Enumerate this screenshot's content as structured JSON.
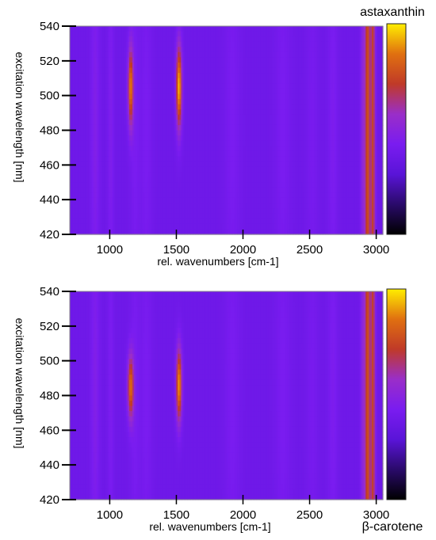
{
  "chart_data": [
    {
      "type": "heatmap",
      "colorbar_label": "astaxanthin",
      "colorbar_label_position": "top-right",
      "xlabel": "rel. wavenumbers [cm-1]",
      "ylabel": "excitation wavelength [nm]",
      "xlim": [
        700,
        3050
      ],
      "ylim": [
        420,
        540
      ],
      "xticks": [
        1000,
        1500,
        2000,
        2500,
        3000
      ],
      "yticks": [
        420,
        440,
        460,
        480,
        500,
        520,
        540
      ],
      "colormap": [
        "#000000",
        "#2a0a6a",
        "#5a14d8",
        "#7a1cf0",
        "#9a2ec8",
        "#c03a28",
        "#e07010",
        "#ffee00"
      ],
      "background_level": 0.38,
      "bands": [
        {
          "center": 890,
          "width": 22,
          "peak_wl": 480,
          "wl_width": 80,
          "amp": 0.08
        },
        {
          "center": 1008,
          "width": 15,
          "peak_wl": 480,
          "wl_width": 80,
          "amp": 0.07
        },
        {
          "center": 1157,
          "width": 14,
          "peak_wl": 505,
          "wl_width": 16,
          "amp": 0.48
        },
        {
          "center": 1190,
          "width": 25,
          "peak_wl": 480,
          "wl_width": 80,
          "amp": 0.05
        },
        {
          "center": 1275,
          "width": 30,
          "peak_wl": 480,
          "wl_width": 80,
          "amp": 0.05
        },
        {
          "center": 1520,
          "width": 15,
          "peak_wl": 505,
          "wl_width": 17,
          "amp": 0.57
        },
        {
          "center": 1920,
          "width": 40,
          "peak_wl": 480,
          "wl_width": 80,
          "amp": 0.05
        },
        {
          "center": 2300,
          "width": 40,
          "peak_wl": 480,
          "wl_width": 80,
          "amp": 0.05
        },
        {
          "center": 2520,
          "width": 30,
          "peak_wl": 480,
          "wl_width": 80,
          "amp": 0.04
        },
        {
          "center": 2675,
          "width": 25,
          "peak_wl": 480,
          "wl_width": 80,
          "amp": 0.06
        },
        {
          "center": 2900,
          "width": 12,
          "peak_wl": 480,
          "wl_width": 90,
          "amp": 0.14
        },
        {
          "center": 2935,
          "width": 14,
          "peak_wl": 480,
          "wl_width": 200,
          "amp": 0.4
        },
        {
          "center": 2975,
          "width": 12,
          "peak_wl": 480,
          "wl_width": 200,
          "amp": 0.36
        }
      ]
    },
    {
      "type": "heatmap",
      "colorbar_label": "β-carotene",
      "colorbar_label_position": "bottom-right",
      "xlabel": "rel. wavenumbers [cm-1]",
      "ylabel": "excitation wavelength [nm]",
      "xlim": [
        700,
        3050
      ],
      "ylim": [
        420,
        540
      ],
      "xticks": [
        1000,
        1500,
        2000,
        2500,
        3000
      ],
      "yticks": [
        420,
        440,
        460,
        480,
        500,
        520,
        540
      ],
      "colormap": [
        "#000000",
        "#2a0a6a",
        "#5a14d8",
        "#7a1cf0",
        "#9a2ec8",
        "#c03a28",
        "#e07010",
        "#ffee00"
      ],
      "background_level": 0.38,
      "bands": [
        {
          "center": 890,
          "width": 22,
          "peak_wl": 480,
          "wl_width": 80,
          "amp": 0.08
        },
        {
          "center": 1008,
          "width": 15,
          "peak_wl": 480,
          "wl_width": 80,
          "amp": 0.06
        },
        {
          "center": 1157,
          "width": 16,
          "peak_wl": 485,
          "wl_width": 13,
          "amp": 0.45
        },
        {
          "center": 1190,
          "width": 25,
          "peak_wl": 480,
          "wl_width": 80,
          "amp": 0.05
        },
        {
          "center": 1275,
          "width": 30,
          "peak_wl": 480,
          "wl_width": 80,
          "amp": 0.05
        },
        {
          "center": 1520,
          "width": 15,
          "peak_wl": 486,
          "wl_width": 15,
          "amp": 0.53
        },
        {
          "center": 1920,
          "width": 40,
          "peak_wl": 480,
          "wl_width": 80,
          "amp": 0.05
        },
        {
          "center": 2300,
          "width": 40,
          "peak_wl": 480,
          "wl_width": 80,
          "amp": 0.05
        },
        {
          "center": 2520,
          "width": 30,
          "peak_wl": 480,
          "wl_width": 80,
          "amp": 0.04
        },
        {
          "center": 2675,
          "width": 25,
          "peak_wl": 480,
          "wl_width": 80,
          "amp": 0.06
        },
        {
          "center": 2900,
          "width": 12,
          "peak_wl": 480,
          "wl_width": 90,
          "amp": 0.14
        },
        {
          "center": 2935,
          "width": 14,
          "peak_wl": 480,
          "wl_width": 200,
          "amp": 0.4
        },
        {
          "center": 2975,
          "width": 12,
          "peak_wl": 480,
          "wl_width": 200,
          "amp": 0.36
        }
      ]
    }
  ]
}
